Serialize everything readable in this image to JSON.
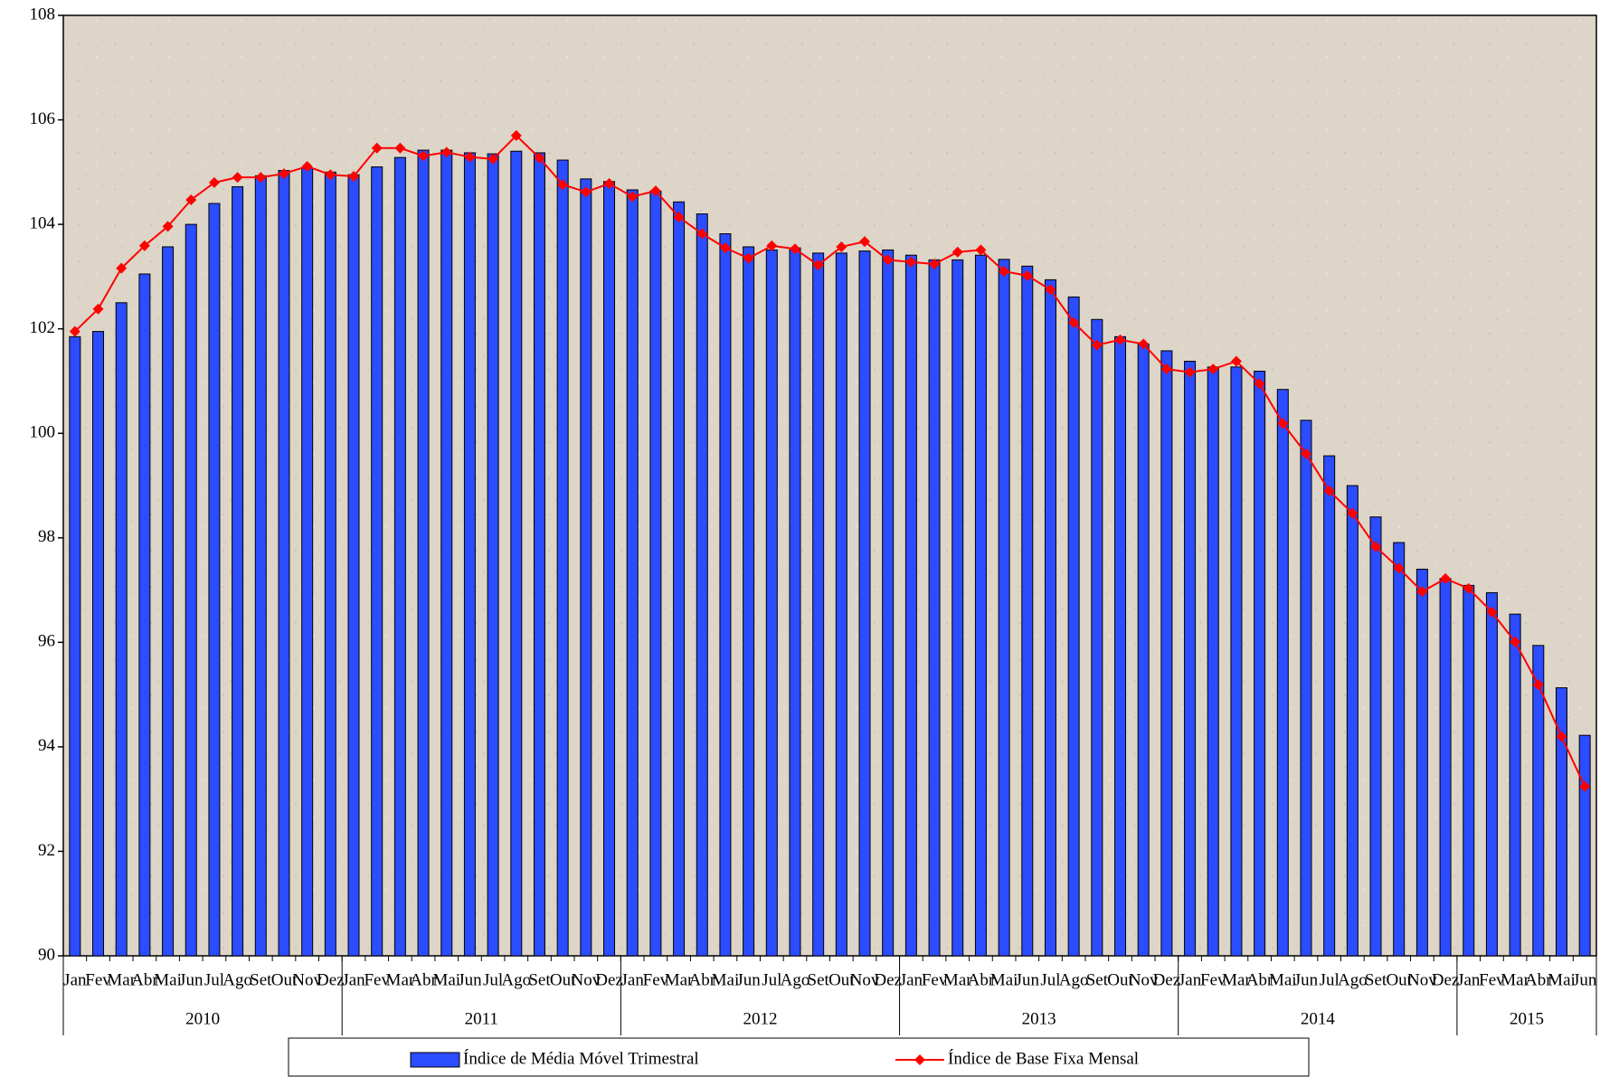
{
  "chart_data": {
    "type": "bar_line",
    "categories": [
      "Jan",
      "Fev",
      "Mar",
      "Abr",
      "Mai",
      "Jun",
      "Jul",
      "Ago",
      "Set",
      "Out",
      "Nov",
      "Dez",
      "Jan",
      "Fev",
      "Mar",
      "Abr",
      "Mai",
      "Jun",
      "Jul",
      "Ago",
      "Set",
      "Out",
      "Nov",
      "Dez",
      "Jan",
      "Fev",
      "Mar",
      "Abr",
      "Mai",
      "Jun",
      "Jul",
      "Ago",
      "Set",
      "Out",
      "Nov",
      "Dez",
      "Jan",
      "Fev",
      "Mar",
      "Abr",
      "Mai",
      "Jun",
      "Jul",
      "Ago",
      "Set",
      "Out",
      "Nov",
      "Dez",
      "Jan",
      "Fev",
      "Mar",
      "Abr",
      "Mai",
      "Jun",
      "Jul",
      "Ago",
      "Set",
      "Out",
      "Nov",
      "Dez",
      "Jan",
      "Fev",
      "Mar",
      "Abr",
      "Mai",
      "Jun"
    ],
    "year_labels": [
      "2010",
      "2011",
      "2012",
      "2013",
      "2014",
      "2015"
    ],
    "series": [
      {
        "name": "Índice de Média Móvel Trimestral",
        "kind": "bar",
        "color": "#2b4cff",
        "values": [
          101.85,
          101.95,
          102.5,
          103.05,
          103.57,
          104.0,
          104.4,
          104.72,
          104.93,
          105.03,
          105.07,
          105.0,
          104.95,
          105.1,
          105.28,
          105.42,
          105.42,
          105.37,
          105.35,
          105.4,
          105.37,
          105.23,
          104.87,
          104.82,
          104.66,
          104.64,
          104.43,
          104.2,
          103.82,
          103.57,
          103.51,
          103.55,
          103.45,
          103.45,
          103.49,
          103.51,
          103.41,
          103.32,
          103.32,
          103.41,
          103.33,
          103.2,
          102.94,
          102.61,
          102.18,
          101.85,
          101.71,
          101.58,
          101.38,
          101.27,
          101.27,
          101.19,
          100.84,
          100.25,
          99.57,
          99.0,
          98.4,
          97.91,
          97.4,
          97.22,
          97.09,
          96.95,
          96.54,
          95.94,
          95.13,
          94.22
        ]
      },
      {
        "name": "Índice de Base Fixa Mensal",
        "kind": "line",
        "color": "#ff0000",
        "values": [
          101.95,
          102.38,
          103.16,
          103.59,
          103.96,
          104.47,
          104.8,
          104.9,
          104.9,
          104.97,
          105.11,
          104.95,
          104.92,
          105.46,
          105.46,
          105.31,
          105.38,
          105.29,
          105.25,
          105.7,
          105.27,
          104.76,
          104.62,
          104.78,
          104.53,
          104.64,
          104.14,
          103.82,
          103.55,
          103.35,
          103.59,
          103.53,
          103.22,
          103.57,
          103.67,
          103.32,
          103.28,
          103.24,
          103.47,
          103.51,
          103.1,
          103.02,
          102.75,
          102.12,
          101.69,
          101.79,
          101.71,
          101.23,
          101.17,
          101.23,
          101.38,
          100.95,
          100.19,
          99.61,
          98.9,
          98.47,
          97.83,
          97.42,
          96.97,
          97.22,
          97.03,
          96.58,
          96.01,
          95.19,
          94.2,
          93.24
        ]
      }
    ],
    "ylim": [
      90,
      108
    ],
    "yticks": [
      90,
      92,
      94,
      96,
      98,
      100,
      102,
      104,
      106,
      108
    ],
    "legend": "bottom"
  }
}
